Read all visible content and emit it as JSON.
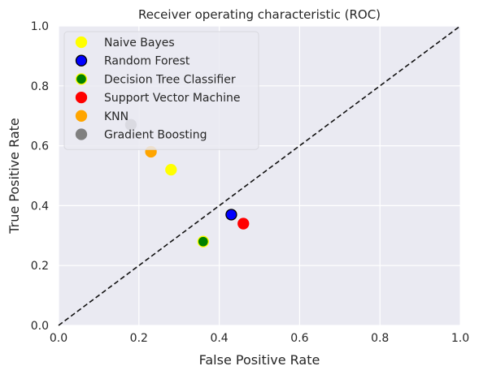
{
  "chart_data": {
    "type": "scatter",
    "title": "Receiver operating characteristic (ROC)",
    "xlabel": "False Positive Rate",
    "ylabel": "True Positive Rate",
    "xlim": [
      0.0,
      1.0
    ],
    "ylim": [
      0.0,
      1.0
    ],
    "xticks": [
      "0.0",
      "0.2",
      "0.4",
      "0.6",
      "0.8",
      "1.0"
    ],
    "yticks": [
      "0.0",
      "0.2",
      "0.4",
      "0.6",
      "0.8",
      "1.0"
    ],
    "grid": true,
    "legend_position": "top-left",
    "reference_line": {
      "style": "dashed",
      "color": "#111111",
      "from": [
        0.0,
        0.0
      ],
      "to": [
        1.0,
        1.0
      ]
    },
    "series": [
      {
        "name": "Naive Bayes",
        "x": 0.28,
        "y": 0.52,
        "fill": "#ffff00",
        "edge": "#ffff00"
      },
      {
        "name": "Random Forest",
        "x": 0.43,
        "y": 0.37,
        "fill": "#0000ff",
        "edge": "#000000"
      },
      {
        "name": "Decision Tree Classifier",
        "x": 0.36,
        "y": 0.28,
        "fill": "#008000",
        "edge": "#ffff00"
      },
      {
        "name": "Support Vector Machine",
        "x": 0.46,
        "y": 0.34,
        "fill": "#ff0000",
        "edge": "#ff0000"
      },
      {
        "name": "KNN",
        "x": 0.23,
        "y": 0.58,
        "fill": "#ffa500",
        "edge": "#ffa500"
      },
      {
        "name": "Gradient Boosting",
        "x": 0.18,
        "y": 0.67,
        "fill": "#808080",
        "edge": "#808080"
      }
    ]
  }
}
